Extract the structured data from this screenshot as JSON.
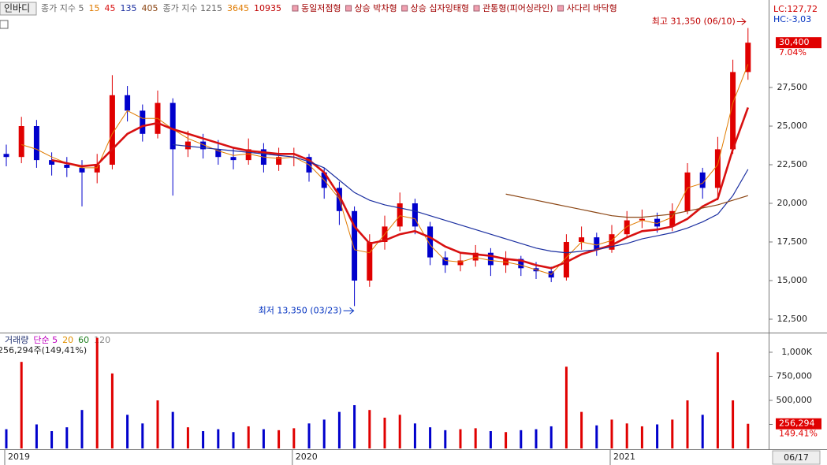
{
  "chart_data": [
    {
      "type": "candlestick",
      "title": "인바디",
      "indicator_labels": [
        "종가 지수 5",
        "종가 지수 1215"
      ],
      "long_ma_labels": [
        {
          "text": "3645",
          "color": "#e07b00"
        },
        {
          "text": "10935",
          "color": "#c00000"
        }
      ],
      "patterns": [
        "동일저점형",
        "상승 박차형",
        "상승 십자잉태형",
        "관통형(피어싱라인)",
        "사다리 바닥형"
      ],
      "pattern_color": "#a00000",
      "lc_label": "LC:127,72",
      "hc_label": "HC:-3,03",
      "last_price_label": "30,400",
      "change_label": "7.04%",
      "high_annotation": "최고 31,350 (06/10)",
      "low_annotation": "최저 13,350 (03/23)",
      "current_date": "06/17",
      "up_color": "#e00000",
      "down_color": "#0000cc",
      "categories": [
        "2019",
        null,
        null,
        null,
        null,
        null,
        null,
        null,
        null,
        null,
        null,
        null,
        null,
        null,
        null,
        null,
        null,
        null,
        null,
        "2020",
        null,
        null,
        null,
        null,
        null,
        null,
        null,
        null,
        null,
        null,
        null,
        null,
        null,
        null,
        null,
        null,
        null,
        null,
        null,
        null,
        "2021",
        null,
        null,
        null,
        null,
        null,
        null,
        null,
        null,
        null
      ],
      "open": [
        23200,
        23000,
        25000,
        22800,
        22500,
        22300,
        22000,
        22500,
        27000,
        26000,
        24500,
        26500,
        23500,
        24000,
        23500,
        23000,
        22800,
        23500,
        22500,
        23000,
        23000,
        22000,
        21000,
        19500,
        15000,
        17500,
        18500,
        20000,
        18500,
        16500,
        16000,
        16300,
        16800,
        16000,
        16400,
        15800,
        15600,
        15200,
        17500,
        17800,
        17000,
        18000,
        18900,
        19000,
        18500,
        19500,
        22000,
        21000,
        23500,
        28500
      ],
      "high": [
        23800,
        25600,
        25400,
        23300,
        23000,
        22800,
        23200,
        28300,
        27600,
        26400,
        27300,
        26800,
        24700,
        24500,
        24100,
        23600,
        24200,
        23900,
        23600,
        23600,
        23200,
        22300,
        21400,
        19800,
        18000,
        19200,
        20700,
        20300,
        18800,
        16900,
        16800,
        17300,
        17100,
        16900,
        16600,
        16200,
        15900,
        18000,
        18500,
        18100,
        18600,
        19500,
        19600,
        19400,
        20000,
        22600,
        22300,
        24300,
        29300,
        31350
      ],
      "low": [
        22400,
        22600,
        22300,
        21800,
        21700,
        19800,
        21300,
        22200,
        25300,
        24000,
        24200,
        20500,
        23000,
        22900,
        22500,
        22200,
        22500,
        22000,
        22100,
        22400,
        21400,
        20300,
        18600,
        13350,
        14600,
        17000,
        18200,
        18000,
        16000,
        15500,
        15600,
        15900,
        15300,
        15500,
        15300,
        15100,
        14900,
        15000,
        17000,
        16600,
        16800,
        17800,
        18400,
        18100,
        18200,
        19300,
        20300,
        20200,
        23200,
        28000
      ],
      "close": [
        23000,
        25000,
        22800,
        22500,
        22300,
        22000,
        22500,
        27000,
        26000,
        24500,
        26500,
        23500,
        24000,
        23500,
        23000,
        22800,
        23500,
        22500,
        23000,
        23000,
        22000,
        21000,
        19500,
        15000,
        17500,
        18500,
        20000,
        18500,
        16500,
        16000,
        16300,
        16800,
        16000,
        16400,
        15800,
        15600,
        15200,
        17500,
        17800,
        17000,
        18000,
        18900,
        19000,
        18500,
        19500,
        22000,
        21000,
        23500,
        28500,
        30400
      ],
      "series": [
        {
          "name": "15",
          "color": "#e07b00",
          "width": 1,
          "values": [
            null,
            23800,
            23500,
            23000,
            22600,
            22300,
            22300,
            24500,
            26000,
            25500,
            25500,
            24800,
            24200,
            23800,
            23400,
            23100,
            23200,
            23000,
            22900,
            23000,
            22500,
            21500,
            20300,
            17000,
            16800,
            18000,
            19200,
            19000,
            17300,
            16300,
            16200,
            16500,
            16300,
            16200,
            16000,
            15700,
            15400,
            16500,
            17500,
            17300,
            17600,
            18500,
            18900,
            18700,
            19100,
            21000,
            21300,
            22500,
            26500,
            29000
          ]
        },
        {
          "name": "45",
          "color": "#d81010",
          "width": 2.6,
          "values": [
            null,
            null,
            null,
            22800,
            22600,
            22400,
            22500,
            23500,
            24500,
            25000,
            25200,
            24800,
            24500,
            24200,
            23900,
            23600,
            23400,
            23300,
            23200,
            23200,
            22800,
            22000,
            20500,
            18500,
            17400,
            17600,
            18000,
            18200,
            17800,
            17200,
            16800,
            16700,
            16600,
            16400,
            16300,
            16000,
            15800,
            16200,
            16700,
            17000,
            17300,
            17800,
            18200,
            18300,
            18500,
            19000,
            19800,
            20300,
            23500,
            26200
          ]
        },
        {
          "name": "135",
          "color": "#1a2ea0",
          "width": 1.2,
          "values": [
            null,
            null,
            null,
            null,
            null,
            null,
            null,
            null,
            null,
            null,
            null,
            23800,
            23700,
            23600,
            23500,
            23400,
            23300,
            23200,
            23100,
            23000,
            22700,
            22300,
            21500,
            20700,
            20200,
            19900,
            19700,
            19500,
            19200,
            18900,
            18600,
            18300,
            18000,
            17700,
            17400,
            17100,
            16900,
            16800,
            16900,
            17000,
            17200,
            17400,
            17700,
            17900,
            18100,
            18400,
            18800,
            19300,
            20500,
            22200
          ]
        },
        {
          "name": "405",
          "color": "#8b4513",
          "width": 1.2,
          "values": [
            null,
            null,
            null,
            null,
            null,
            null,
            null,
            null,
            null,
            null,
            null,
            null,
            null,
            null,
            null,
            null,
            null,
            null,
            null,
            null,
            null,
            null,
            null,
            null,
            null,
            null,
            null,
            null,
            null,
            null,
            null,
            null,
            null,
            20600,
            20400,
            20200,
            20000,
            19800,
            19600,
            19400,
            19200,
            19100,
            19100,
            19200,
            19300,
            19500,
            19700,
            19900,
            20200,
            20500
          ]
        }
      ],
      "ylim": [
        11735,
        32755
      ],
      "yticks": [
        {
          "value": 12500,
          "label": "12,500"
        },
        {
          "value": 15000,
          "label": "15,000"
        },
        {
          "value": 17500,
          "label": "17,500"
        },
        {
          "value": 20000,
          "label": "20,000"
        },
        {
          "value": 22500,
          "label": "22,500"
        },
        {
          "value": 25000,
          "label": "25,000"
        },
        {
          "value": 27500,
          "label": "27,500"
        }
      ]
    },
    {
      "type": "volume",
      "title": "거래량",
      "ma_labels": [
        {
          "text": "단순 5",
          "color": "#c000c0"
        },
        {
          "text": "20",
          "color": "#e09000"
        },
        {
          "text": "60",
          "color": "#208020"
        },
        {
          "text": "120",
          "color": "#888888"
        }
      ],
      "summary": "256,294주(149,41%)",
      "last_volume_label": "256,294",
      "ratio_label": "149.41%",
      "values": [
        200000,
        900000,
        250000,
        180000,
        220000,
        400000,
        1150000,
        780000,
        350000,
        260000,
        500000,
        380000,
        220000,
        180000,
        200000,
        170000,
        230000,
        200000,
        190000,
        210000,
        260000,
        300000,
        380000,
        450000,
        400000,
        320000,
        350000,
        260000,
        220000,
        190000,
        200000,
        210000,
        180000,
        170000,
        190000,
        200000,
        230000,
        850000,
        380000,
        240000,
        300000,
        260000,
        230000,
        250000,
        300000,
        500000,
        350000,
        1000000,
        500000,
        256294
      ],
      "ylim": [
        0,
        1180000
      ],
      "yticks": [
        {
          "value": 250000,
          "label": "250,000"
        },
        {
          "value": 500000,
          "label": "500,000"
        },
        {
          "value": 750000,
          "label": "750,000"
        },
        {
          "value": 1000000,
          "label": "1,000K"
        }
      ]
    }
  ]
}
